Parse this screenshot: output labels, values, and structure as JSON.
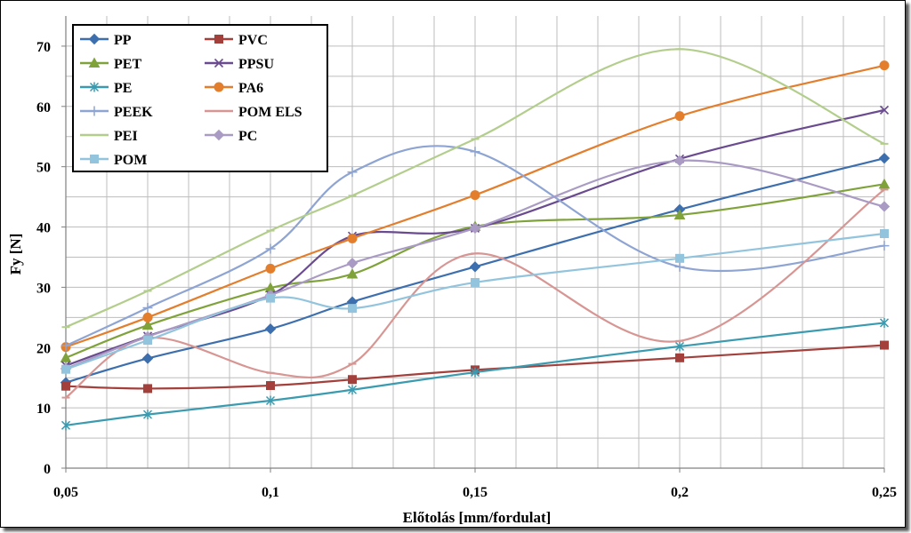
{
  "chart_data": {
    "type": "line",
    "xlabel": "Előtolás [mm/fordulat]",
    "ylabel": "Fy [N]",
    "x": [
      0.05,
      0.07,
      0.1,
      0.12,
      0.15,
      0.2,
      0.25
    ],
    "x_tick_labels": [
      "0,05",
      "0,1",
      "0,15",
      "0,2",
      "0,25"
    ],
    "x_ticks": [
      0.05,
      0.1,
      0.15,
      0.2,
      0.25
    ],
    "xlim": [
      0.05,
      0.25
    ],
    "ylim": [
      0,
      75
    ],
    "y_ticks": [
      0,
      10,
      20,
      30,
      40,
      50,
      60,
      70
    ],
    "y_tick_labels": [
      "0",
      "10",
      "20",
      "30",
      "40",
      "50",
      "60",
      "70"
    ],
    "grid": true,
    "legend_position": "top-left",
    "series": [
      {
        "name": "PP",
        "color": "#3d6fae",
        "marker": "diamond",
        "values": [
          14.2,
          18.2,
          23.1,
          27.6,
          33.4,
          42.9,
          51.4
        ]
      },
      {
        "name": "PVC",
        "color": "#a4403c",
        "marker": "square",
        "values": [
          13.6,
          13.2,
          13.7,
          14.7,
          16.3,
          18.3,
          20.4
        ]
      },
      {
        "name": "PET",
        "color": "#7fa33a",
        "marker": "triangle",
        "values": [
          18.3,
          23.7,
          29.9,
          32.2,
          40.1,
          42.0,
          47.1
        ]
      },
      {
        "name": "PPSU",
        "color": "#6a4b8f",
        "marker": "x",
        "values": [
          17.0,
          21.9,
          28.7,
          38.5,
          39.8,
          51.3,
          59.4
        ]
      },
      {
        "name": "PE",
        "color": "#3a9bb0",
        "marker": "star",
        "values": [
          7.1,
          8.9,
          11.2,
          13.0,
          15.9,
          20.2,
          24.1
        ]
      },
      {
        "name": "PA6",
        "color": "#e37e2d",
        "marker": "circle",
        "values": [
          20.1,
          25.0,
          33.1,
          38.1,
          45.3,
          58.4,
          66.8
        ]
      },
      {
        "name": "PEEK",
        "color": "#8ea4d2",
        "marker": "plus",
        "values": [
          20.3,
          26.6,
          36.4,
          49.1,
          52.5,
          33.4,
          36.9
        ]
      },
      {
        "name": "POM ELS",
        "color": "#d79693",
        "marker": "dash",
        "values": [
          11.7,
          21.6,
          15.8,
          17.3,
          35.6,
          21.1,
          46.2
        ]
      },
      {
        "name": "PEI",
        "color": "#b3ce8c",
        "marker": "dash",
        "values": [
          23.4,
          29.4,
          39.4,
          45.2,
          54.6,
          69.5,
          53.8
        ]
      },
      {
        "name": "PC",
        "color": "#a99bc3",
        "marker": "diamond",
        "values": [
          16.5,
          21.8,
          28.7,
          34.0,
          39.8,
          51.0,
          43.4
        ]
      },
      {
        "name": "POM",
        "color": "#93c4dd",
        "marker": "square",
        "values": [
          16.4,
          21.2,
          28.2,
          26.5,
          30.8,
          34.8,
          38.9
        ]
      }
    ]
  }
}
